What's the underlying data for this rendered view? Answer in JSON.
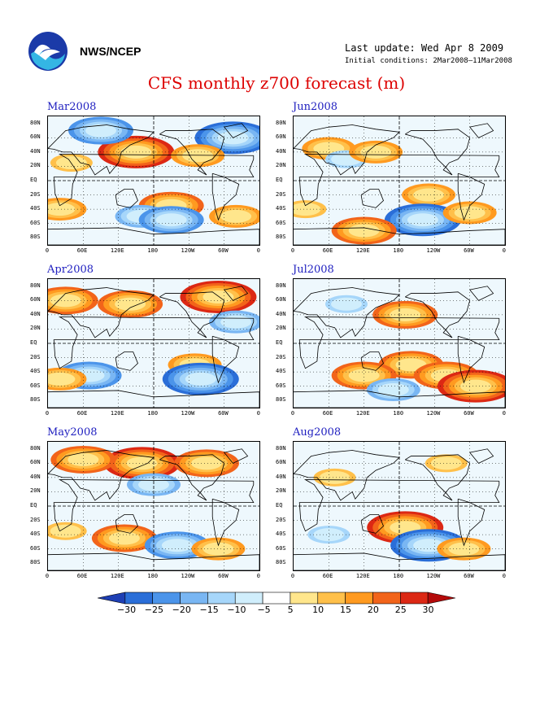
{
  "header": {
    "agency": "NWS/NCEP",
    "last_update": "Last update: Wed Apr 8 2009",
    "initial_conditions": "Initial conditions: 2Mar2008–11Mar2008",
    "title": "CFS monthly z700 forecast (m)",
    "logo_icon": "noaa-logo-icon"
  },
  "axes": {
    "lat_labels": [
      "80N",
      "60N",
      "40N",
      "20N",
      "EQ",
      "20S",
      "40S",
      "60S",
      "80S"
    ],
    "lon_labels": [
      "0",
      "60E",
      "120E",
      "180",
      "120W",
      "60W",
      "0"
    ]
  },
  "panels": [
    {
      "label": "Mar2008"
    },
    {
      "label": "Jun2008"
    },
    {
      "label": "Apr2008"
    },
    {
      "label": "Jul2008"
    },
    {
      "label": "May2008"
    },
    {
      "label": "Aug2008"
    }
  ],
  "colorbar": {
    "labels": [
      "−30",
      "−25",
      "−20",
      "−15",
      "−10",
      "−5",
      "5",
      "10",
      "15",
      "20",
      "25",
      "30"
    ],
    "colors": [
      "#1e3fb4",
      "#2a6ed8",
      "#4b94ea",
      "#79b6f3",
      "#a6d6fa",
      "#d0eefc",
      "#ffffff",
      "#ffe68c",
      "#ffc04a",
      "#ff9a20",
      "#f2641a",
      "#dc2814",
      "#b40a0a"
    ]
  },
  "chart_data": {
    "type": "heatmap",
    "variable": "z700 anomaly (m)",
    "panels": [
      {
        "month": "Mar2008",
        "anomalies": [
          {
            "lat": 40,
            "lon": 150,
            "value": 25
          },
          {
            "lat": 70,
            "lon": 90,
            "value": -20
          },
          {
            "lat": 60,
            "lon": 315,
            "value": -25
          },
          {
            "lat": 35,
            "lon": 255,
            "value": 15
          },
          {
            "lat": -35,
            "lon": 210,
            "value": 20
          },
          {
            "lat": -50,
            "lon": 160,
            "value": -15
          },
          {
            "lat": -55,
            "lon": 210,
            "value": -20
          },
          {
            "lat": -40,
            "lon": 20,
            "value": 15
          },
          {
            "lat": -50,
            "lon": 320,
            "value": 15
          },
          {
            "lat": 25,
            "lon": 40,
            "value": 10
          }
        ]
      },
      {
        "month": "Jun2008",
        "anomalies": [
          {
            "lat": 45,
            "lon": 60,
            "value": 15
          },
          {
            "lat": 30,
            "lon": 90,
            "value": -10
          },
          {
            "lat": 40,
            "lon": 140,
            "value": 15
          },
          {
            "lat": -20,
            "lon": 230,
            "value": 15
          },
          {
            "lat": -55,
            "lon": 220,
            "value": -25
          },
          {
            "lat": -70,
            "lon": 120,
            "value": 20
          },
          {
            "lat": -45,
            "lon": 300,
            "value": 15
          },
          {
            "lat": -40,
            "lon": 20,
            "value": 10
          }
        ]
      },
      {
        "month": "Apr2008",
        "anomalies": [
          {
            "lat": 60,
            "lon": 30,
            "value": 20
          },
          {
            "lat": 55,
            "lon": 140,
            "value": 20
          },
          {
            "lat": 65,
            "lon": 290,
            "value": 25
          },
          {
            "lat": 30,
            "lon": 320,
            "value": -15
          },
          {
            "lat": -30,
            "lon": 250,
            "value": 15
          },
          {
            "lat": -45,
            "lon": 70,
            "value": -20
          },
          {
            "lat": -50,
            "lon": 260,
            "value": -25
          },
          {
            "lat": -50,
            "lon": 20,
            "value": 15
          }
        ]
      },
      {
        "month": "Jul2008",
        "anomalies": [
          {
            "lat": 40,
            "lon": 190,
            "value": 20
          },
          {
            "lat": 55,
            "lon": 90,
            "value": -10
          },
          {
            "lat": -30,
            "lon": 200,
            "value": 20
          },
          {
            "lat": -45,
            "lon": 120,
            "value": 20
          },
          {
            "lat": -45,
            "lon": 260,
            "value": 20
          },
          {
            "lat": -60,
            "lon": 310,
            "value": 25
          },
          {
            "lat": -65,
            "lon": 170,
            "value": -15
          }
        ]
      },
      {
        "month": "May2008",
        "anomalies": [
          {
            "lat": 60,
            "lon": 160,
            "value": 25
          },
          {
            "lat": 65,
            "lon": 60,
            "value": 20
          },
          {
            "lat": 60,
            "lon": 270,
            "value": 20
          },
          {
            "lat": 30,
            "lon": 180,
            "value": -15
          },
          {
            "lat": -45,
            "lon": 130,
            "value": 20
          },
          {
            "lat": -55,
            "lon": 220,
            "value": -20
          },
          {
            "lat": -60,
            "lon": 290,
            "value": 15
          },
          {
            "lat": -35,
            "lon": 30,
            "value": 10
          }
        ]
      },
      {
        "month": "Aug2008",
        "anomalies": [
          {
            "lat": -30,
            "lon": 190,
            "value": 25
          },
          {
            "lat": -55,
            "lon": 230,
            "value": -25
          },
          {
            "lat": -60,
            "lon": 290,
            "value": 15
          },
          {
            "lat": 40,
            "lon": 70,
            "value": 10
          },
          {
            "lat": 60,
            "lon": 260,
            "value": 10
          },
          {
            "lat": -40,
            "lon": 60,
            "value": -10
          }
        ]
      }
    ]
  }
}
